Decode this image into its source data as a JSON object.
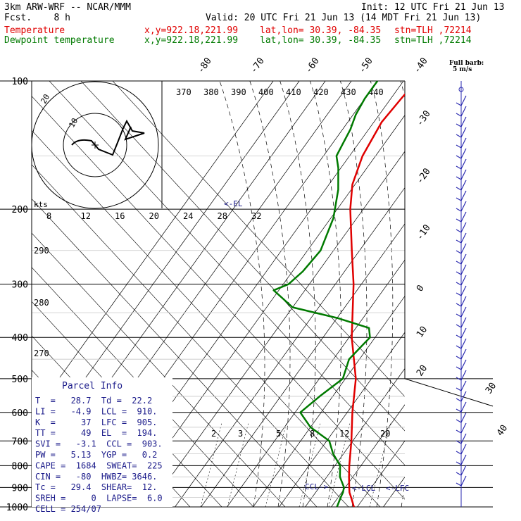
{
  "header": {
    "model": "3km ARW-WRF -- NCAR/MMM",
    "init": "Init: 12 UTC Fri 21 Jun 13",
    "fcst": "Fcst.    8 h",
    "valid": "Valid: 20 UTC Fri 21 Jun 13 (14 MDT Fri 21 Jun 13)",
    "temp_line": {
      "label": "Temperature",
      "xy": "x,y=922.18,221.99",
      "latlon": "lat,lon= 30.39, -84.35",
      "stn": "stn=TLH ,72214"
    },
    "dew_line": {
      "label": "Dewpoint temperature",
      "xy": "x,y=922.18,221.99",
      "latlon": "lat,lon= 30.39, -84.35",
      "stn": "stn=TLH ,72214"
    },
    "barb_note_1": "Full barb:",
    "barb_note_2": "5 m/s"
  },
  "colors": {
    "temperature": "#e00000",
    "dewpoint": "#007a00",
    "grid": "#000000",
    "panel_bg": "#ffffff",
    "wind": "#2a2ab0"
  },
  "parcel_info": {
    "title": "Parcel Info",
    "rows": [
      "T  =   28.7  Td =  22.2",
      "LI =   -4.9  LCL =  910.",
      "K  =     37  LFC =  905.",
      "TT =     49  EL  =  194.",
      "SVI =   -3.1  CCL =  903.",
      "PW =   5.13  YGP =   0.2",
      "CAPE =  1684  SWEAT=  225",
      "CIN =   -80  HWBZ= 3646.",
      "Tc =   29.4  SHEAR=  12.",
      "SREH =     0  LAPSE=  6.0",
      "CELL = 254/07"
    ]
  },
  "hodograph": {
    "ring_labels": [
      "10",
      "20"
    ],
    "speed_axis_label": "kts",
    "speed_ticks": [
      "8",
      "12",
      "16",
      "20",
      "24",
      "28",
      "32"
    ]
  },
  "annotations": {
    "el": "<-EL",
    "ccl": "CCL->",
    "lcl": "<-LCL",
    "lfc": "<-LFC"
  },
  "chart_data": {
    "type": "line",
    "title": "",
    "pressure_levels": [
      100,
      200,
      300,
      400,
      500,
      600,
      700,
      800,
      900,
      1000
    ],
    "temperature_ticks": [
      -80,
      -70,
      -60,
      -50,
      -40,
      -30,
      -20,
      -10,
      0,
      10,
      20,
      30,
      40
    ],
    "theta_labels": [
      370,
      380,
      390,
      400,
      410,
      420,
      430,
      440
    ],
    "theta_lower_labels": [
      290,
      280,
      270
    ],
    "mixing_ratio_labels": [
      2,
      3,
      5,
      8,
      12,
      20
    ],
    "series": [
      {
        "name": "Temperature",
        "points": [
          [
            1000,
            28.7
          ],
          [
            950,
            25.0
          ],
          [
            925,
            23.0
          ],
          [
            900,
            21.5
          ],
          [
            850,
            18.5
          ],
          [
            800,
            15.5
          ],
          [
            700,
            9.5
          ],
          [
            600,
            2.0
          ],
          [
            500,
            -6.0
          ],
          [
            400,
            -19.0
          ],
          [
            300,
            -33.0
          ],
          [
            250,
            -43.0
          ],
          [
            200,
            -55.0
          ],
          [
            175,
            -61.0
          ],
          [
            150,
            -65.0
          ],
          [
            125,
            -67.0
          ],
          [
            110,
            -66.0
          ],
          [
            100,
            -65.0
          ]
        ]
      },
      {
        "name": "Dewpoint temperature",
        "points": [
          [
            1000,
            22.2
          ],
          [
            950,
            21.0
          ],
          [
            925,
            20.5
          ],
          [
            900,
            19.5
          ],
          [
            850,
            15.0
          ],
          [
            800,
            12.0
          ],
          [
            750,
            6.0
          ],
          [
            700,
            1.0
          ],
          [
            650,
            -10.0
          ],
          [
            600,
            -18.0
          ],
          [
            550,
            -15.0
          ],
          [
            500,
            -11.0
          ],
          [
            450,
            -14.0
          ],
          [
            400,
            -12.0
          ],
          [
            380,
            -15.0
          ],
          [
            360,
            -30.0
          ],
          [
            340,
            -50.0
          ],
          [
            310,
            -62.0
          ],
          [
            300,
            -58.0
          ],
          [
            280,
            -56.0
          ],
          [
            250,
            -55.0
          ],
          [
            210,
            -59.0
          ],
          [
            180,
            -65.0
          ],
          [
            160,
            -71.0
          ],
          [
            150,
            -75.0
          ],
          [
            140,
            -76.0
          ],
          [
            130,
            -77.0
          ],
          [
            120,
            -79.0
          ],
          [
            110,
            -80.0
          ],
          [
            100,
            -80.0
          ]
        ]
      }
    ],
    "levels_marked": [
      {
        "label": "EL",
        "pressure": 194
      },
      {
        "label": "CCL",
        "pressure": 903
      },
      {
        "label": "LCL",
        "pressure": 910
      },
      {
        "label": "LFC",
        "pressure": 905
      }
    ]
  }
}
